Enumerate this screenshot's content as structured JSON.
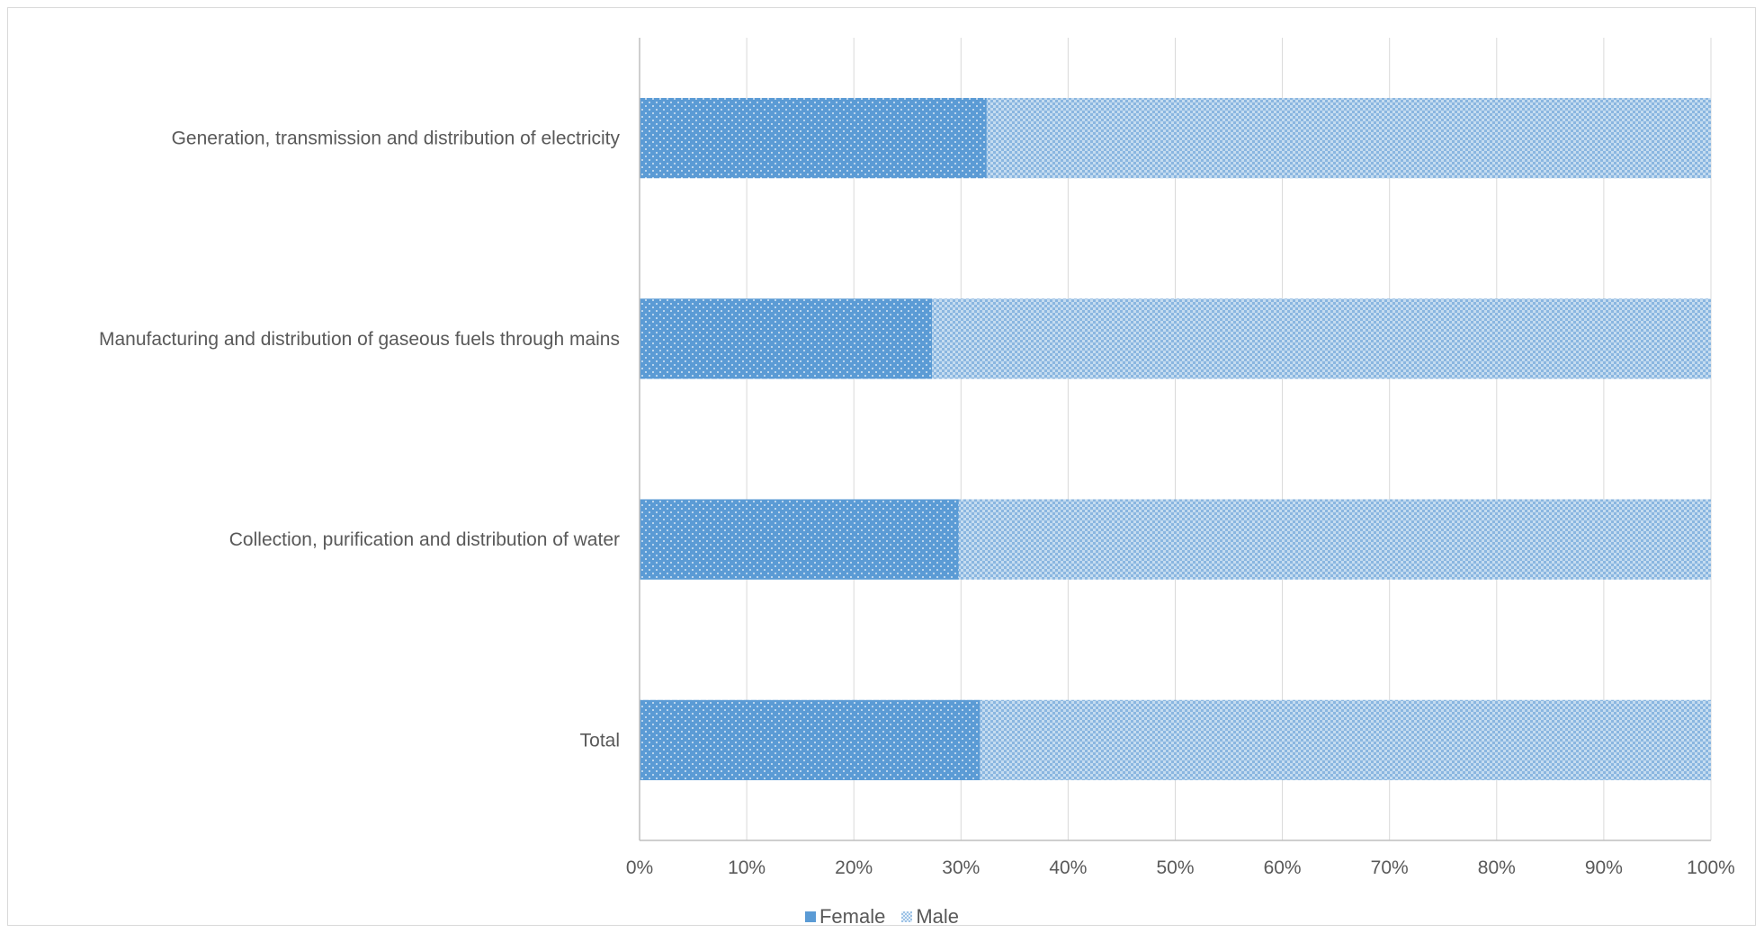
{
  "chart_data": {
    "type": "bar",
    "orientation": "horizontal",
    "stacked": "percent",
    "categories": [
      "Generation, transmission and distribution of electricity",
      "Manufacturing and distribution of gaseous fuels through mains",
      "Collection, purification and distribution of water",
      "Total"
    ],
    "series": [
      {
        "name": "Female",
        "values": [
          32.4,
          27.3,
          29.8,
          31.8
        ],
        "color": "#5b9bd5",
        "pattern": "dots"
      },
      {
        "name": "Male",
        "values": [
          67.6,
          72.7,
          70.2,
          68.2
        ],
        "color": "#9dc3e6",
        "pattern": "checker"
      }
    ],
    "xlim": [
      0,
      100
    ],
    "x_ticks": [
      "0%",
      "10%",
      "20%",
      "30%",
      "40%",
      "50%",
      "60%",
      "70%",
      "80%",
      "90%",
      "100%"
    ],
    "grid": true,
    "legend_position": "bottom",
    "title": "",
    "xlabel": "",
    "ylabel": ""
  }
}
